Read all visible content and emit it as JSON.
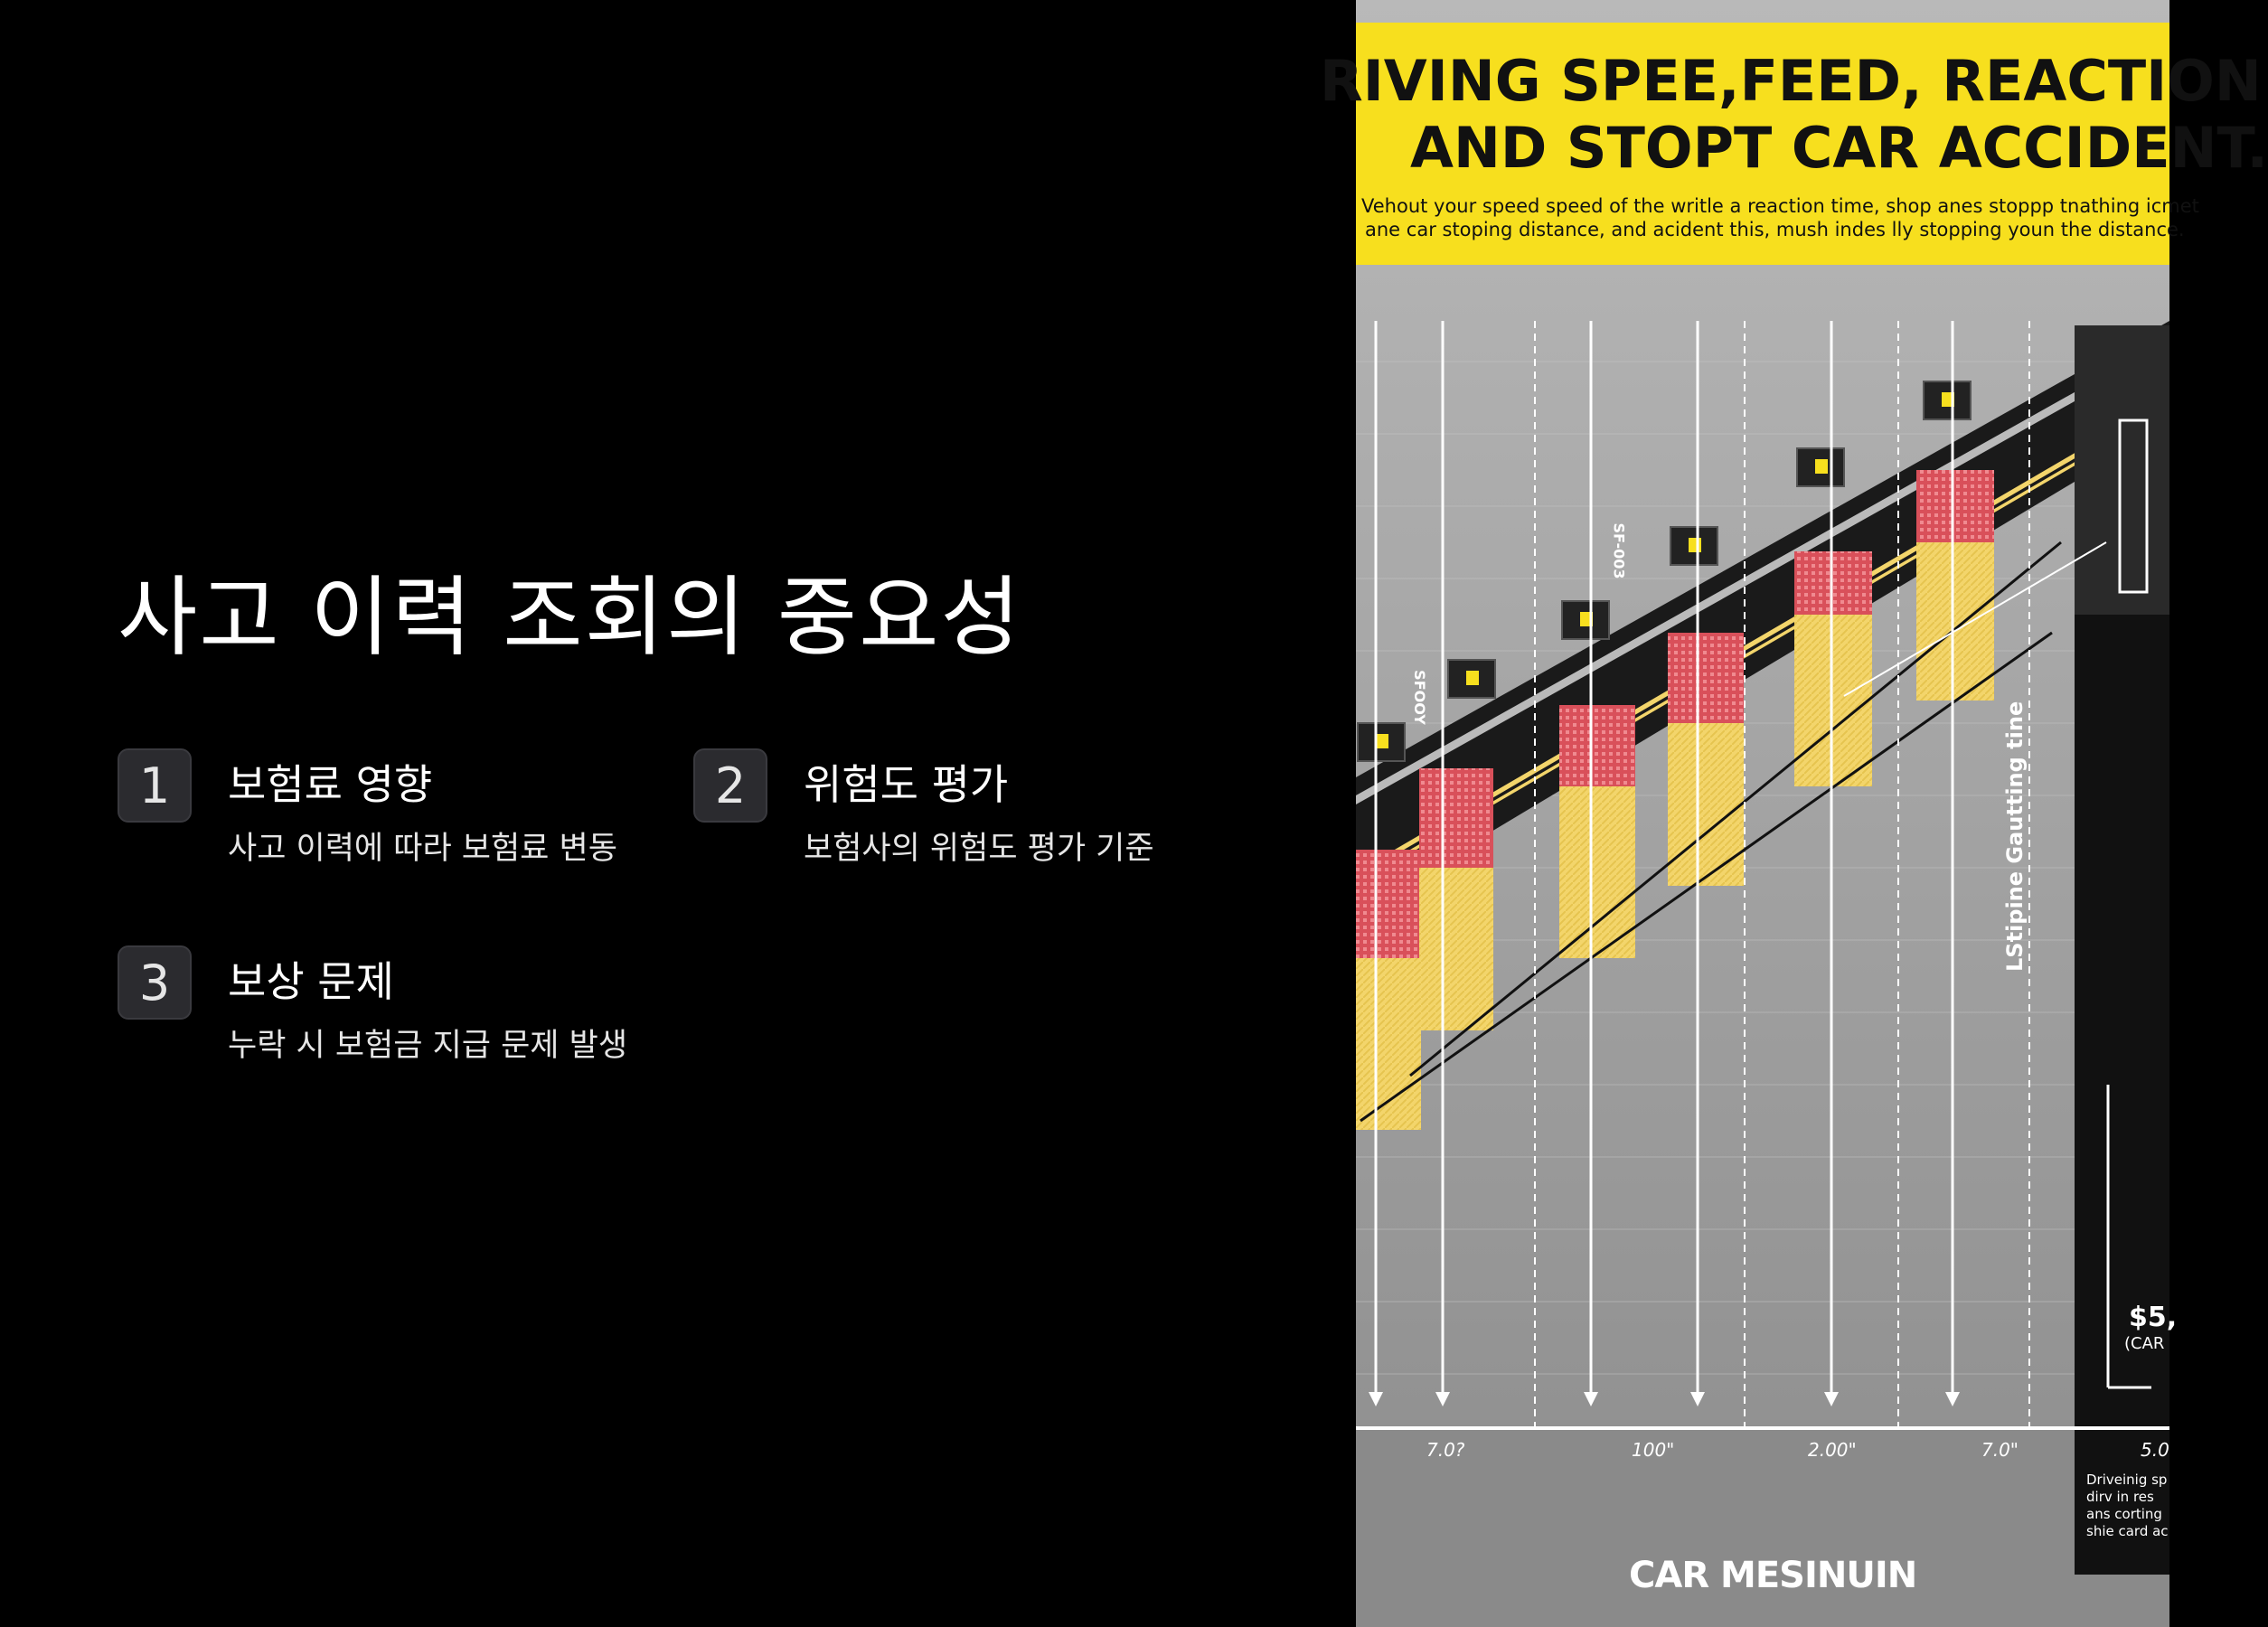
{
  "slide": {
    "title": "사고 이력 조회의 중요성",
    "items": [
      {
        "number": "1",
        "title": "보험료 영향",
        "description": "사고 이력에 따라 보험료 변동"
      },
      {
        "number": "2",
        "title": "위험도 평가",
        "description": "보험사의 위험도 평가 기준"
      },
      {
        "number": "3",
        "title": "보상 문제",
        "description": "누락 시 보험금 지급 문제 발생"
      }
    ]
  },
  "image": {
    "headline_1": "RIVING SPEE,FEED, REACTION",
    "headline_2": "AND STOPT CAR ACCIDENT.",
    "subtitle_1": "Vehout your speed speed of the writle a reaction time, shop anes stoppp tnathing icmet",
    "subtitle_2": "ane car stoping distance, and acident this, mush indes lly stopping youn the distance.",
    "brand": "CAR MESINUIN",
    "side_label": "LStipine Gautting tine",
    "money": "$5,",
    "money_sub": "(CAR",
    "axis_ticks": [
      "7.0?",
      "100\"",
      "2.00\"",
      "7.0\"",
      "5.0"
    ],
    "sign_labels": [
      "SFOOY",
      "SF-003"
    ],
    "footnote": [
      "Driveinig sp",
      "dirv in res",
      "ans corting",
      "shie card ac"
    ]
  },
  "colors": {
    "banner": "#f7df1e",
    "road": "#1a1a1a",
    "warning_red": "#d9505a",
    "warning_yellow": "#f3d56b",
    "number_box": "#2b2b2f"
  }
}
